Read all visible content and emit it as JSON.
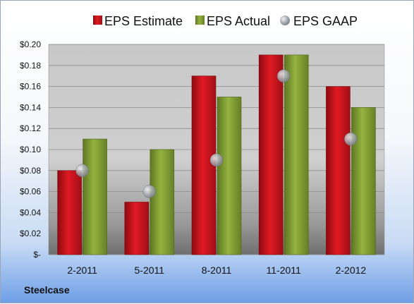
{
  "company": "Steelcase",
  "chart_data": {
    "type": "bar",
    "categories": [
      "2-2011",
      "5-2011",
      "8-2011",
      "11-2011",
      "2-2012"
    ],
    "series": [
      {
        "name": "EPS Estimate",
        "type": "bar",
        "color": "#c0141c",
        "values": [
          0.08,
          0.05,
          0.17,
          0.19,
          0.16
        ]
      },
      {
        "name": "EPS Actual",
        "type": "bar",
        "color": "#7f9c32",
        "values": [
          0.11,
          0.1,
          0.15,
          0.19,
          0.14
        ]
      },
      {
        "name": "EPS GAAP",
        "type": "scatter",
        "color": "#a8adb4",
        "values": [
          0.08,
          0.06,
          0.09,
          0.17,
          0.11
        ]
      }
    ],
    "ylim": [
      0,
      0.2
    ],
    "yticks": [
      0,
      0.02,
      0.04,
      0.06,
      0.08,
      0.1,
      0.12,
      0.14,
      0.16,
      0.18,
      0.2
    ],
    "ytick_labels": [
      "$-",
      "$0.02",
      "$0.04",
      "$0.06",
      "$0.08",
      "$0.10",
      "$0.12",
      "$0.14",
      "$0.16",
      "$0.18",
      "$0.20"
    ],
    "grid": true,
    "legend_position": "top"
  }
}
